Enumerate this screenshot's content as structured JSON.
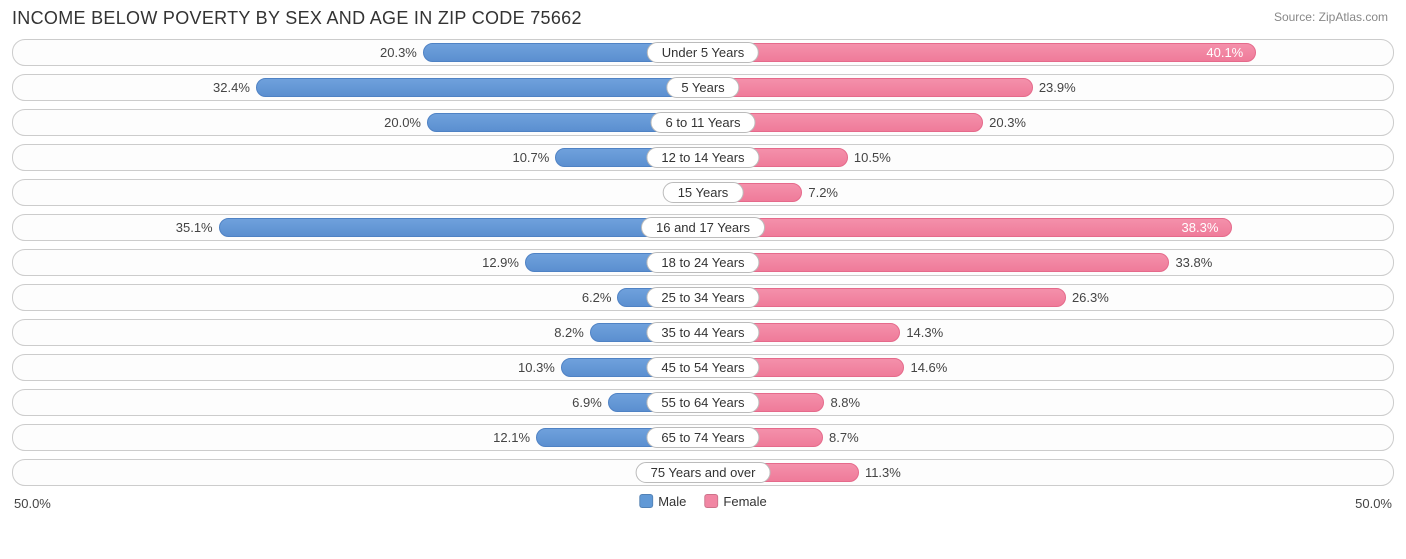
{
  "title": "INCOME BELOW POVERTY BY SEX AND AGE IN ZIP CODE 75662",
  "source": "Source: ZipAtlas.com",
  "chart": {
    "type": "diverging-bar",
    "axis_max": 50.0,
    "axis_label_left": "50.0%",
    "axis_label_right": "50.0%",
    "male_color": "#6199d6",
    "female_color": "#f186a3",
    "track_border": "#cccccc",
    "background": "#ffffff",
    "label_fontsize": 13,
    "title_fontsize": 18,
    "value_inside_threshold": 36,
    "rows": [
      {
        "category": "Under 5 Years",
        "male": 20.3,
        "female": 40.1
      },
      {
        "category": "5 Years",
        "male": 32.4,
        "female": 23.9
      },
      {
        "category": "6 to 11 Years",
        "male": 20.0,
        "female": 20.3
      },
      {
        "category": "12 to 14 Years",
        "male": 10.7,
        "female": 10.5
      },
      {
        "category": "15 Years",
        "male": 0.0,
        "female": 7.2
      },
      {
        "category": "16 and 17 Years",
        "male": 35.1,
        "female": 38.3
      },
      {
        "category": "18 to 24 Years",
        "male": 12.9,
        "female": 33.8
      },
      {
        "category": "25 to 34 Years",
        "male": 6.2,
        "female": 26.3
      },
      {
        "category": "35 to 44 Years",
        "male": 8.2,
        "female": 14.3
      },
      {
        "category": "45 to 54 Years",
        "male": 10.3,
        "female": 14.6
      },
      {
        "category": "55 to 64 Years",
        "male": 6.9,
        "female": 8.8
      },
      {
        "category": "65 to 74 Years",
        "male": 12.1,
        "female": 8.7
      },
      {
        "category": "75 Years and over",
        "male": 2.1,
        "female": 11.3
      }
    ],
    "legend": {
      "male": "Male",
      "female": "Female"
    }
  }
}
